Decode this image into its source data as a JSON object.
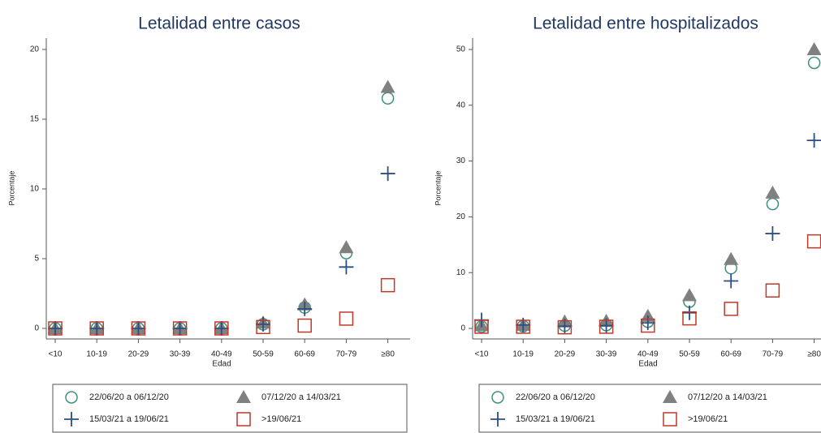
{
  "chart_data": [
    {
      "type": "scatter",
      "title": "Letalidad entre casos",
      "x_label": "Edad",
      "y_label": "Porcentaje",
      "categories": [
        "<10",
        "10-19",
        "20-29",
        "30-39",
        "40-49",
        "50-59",
        "60-69",
        "70-79",
        "≥80"
      ],
      "ylim": [
        0,
        20
      ],
      "yticks": [
        0,
        5,
        10,
        15,
        20
      ],
      "series": [
        {
          "name": "22/06/20 a 06/12/20",
          "marker": "circle",
          "color": "#3f8f7f",
          "values": [
            0,
            0,
            0,
            0,
            0,
            0.3,
            1.5,
            5.4,
            16.5
          ]
        },
        {
          "name": "07/12/20 a 14/03/21",
          "marker": "triangle",
          "color": "#808080",
          "values": [
            0,
            0,
            0,
            0,
            0,
            0.4,
            1.7,
            5.8,
            17.3
          ]
        },
        {
          "name": "15/03/21 a 19/06/21",
          "marker": "plus",
          "color": "#2b4f80",
          "values": [
            0,
            0,
            0,
            0,
            0,
            0.3,
            1.4,
            4.4,
            11.1
          ]
        },
        {
          "name": ">19/06/21",
          "marker": "square",
          "color": "#c0392b",
          "values": [
            0,
            0,
            0,
            0,
            0,
            0.1,
            0.2,
            0.7,
            3.1
          ]
        }
      ]
    },
    {
      "type": "scatter",
      "title": "Letalidad entre hospitalizados",
      "x_label": "Edad",
      "y_label": "Porcentaje",
      "categories": [
        "<10",
        "10-19",
        "20-29",
        "30-39",
        "40-49",
        "50-59",
        "60-69",
        "70-79",
        "≥80"
      ],
      "ylim": [
        0,
        50
      ],
      "yticks": [
        0,
        10,
        20,
        30,
        40,
        50
      ],
      "series": [
        {
          "name": "22/06/20 a 06/12/20",
          "marker": "circle",
          "color": "#3f8f7f",
          "values": [
            0.3,
            0.4,
            0.5,
            0.6,
            1.2,
            4.8,
            10.8,
            22.3,
            47.6
          ]
        },
        {
          "name": "07/12/20 a 14/03/21",
          "marker": "triangle",
          "color": "#808080",
          "values": [
            0.5,
            0.6,
            1.2,
            1.3,
            2.2,
            5.9,
            12.4,
            24.3,
            50
          ]
        },
        {
          "name": "15/03/21 a 19/06/21",
          "marker": "plus",
          "color": "#2b4f80",
          "values": [
            1.5,
            0.6,
            0.4,
            0.5,
            1.0,
            2.8,
            8.5,
            17,
            33.7
          ]
        },
        {
          "name": ">19/06/21",
          "marker": "square",
          "color": "#c0392b",
          "values": [
            0.3,
            0.3,
            0.2,
            0.3,
            0.5,
            1.8,
            3.5,
            6.8,
            15.6
          ]
        }
      ]
    }
  ]
}
